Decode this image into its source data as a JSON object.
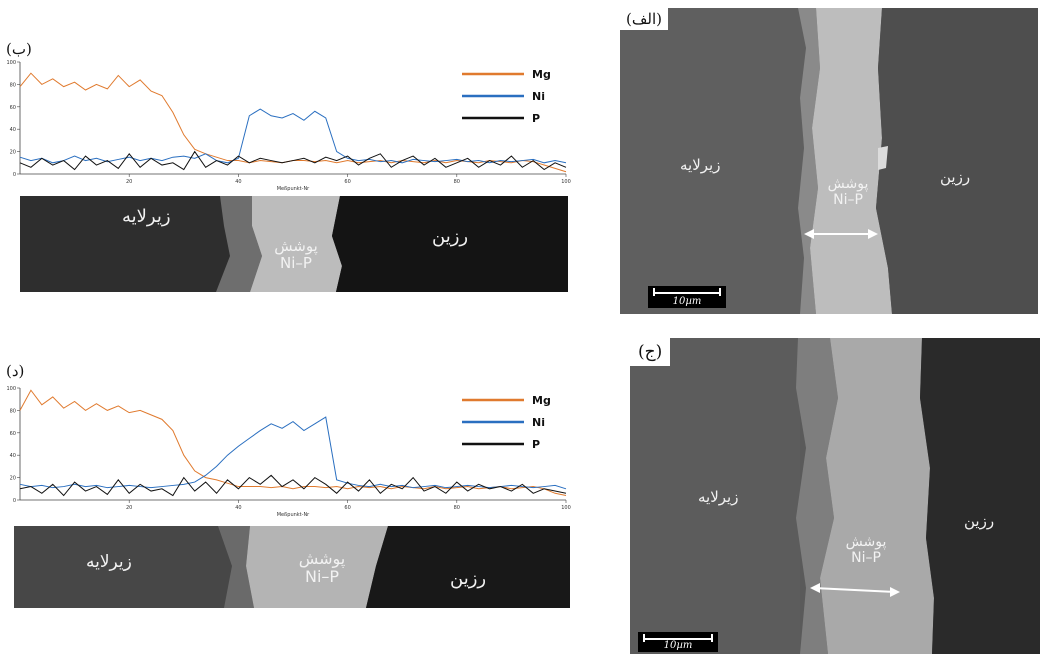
{
  "panel_a": {
    "label": "(الف)",
    "substrate": "زیرلایه",
    "coating_line1": "پوشش",
    "coating_line2": "Ni–P",
    "resin": "رزین",
    "scale": "10µm"
  },
  "panel_b": {
    "label": "(ب)",
    "substrate": "زیرلایه",
    "coating_line1": "پوشش",
    "coating_line2": "Ni–P",
    "resin": "رزین"
  },
  "panel_c": {
    "label": "(ج)",
    "substrate": "زیرلایه",
    "coating_line1": "پوشش",
    "coating_line2": "Ni–P",
    "resin": "رزین",
    "scale": "10µm"
  },
  "panel_d": {
    "label": "(د)",
    "substrate": "زیرلایه",
    "coating_line1": "پوشش",
    "coating_line2": "Ni–P",
    "resin": "رزین"
  },
  "colors": {
    "Mg": "#e07a2e",
    "Ni": "#2a6fc0",
    "P": "#111111"
  },
  "chart_data": [
    {
      "type": "line",
      "panel": "b",
      "xlabel": "Meßpunkt-Nr",
      "xlim": [
        0,
        100
      ],
      "ylim": [
        0,
        100
      ],
      "xticks": [
        20,
        40,
        60,
        80,
        100
      ],
      "yticks": [
        0,
        20,
        40,
        60,
        80,
        100
      ],
      "x": [
        0,
        2,
        4,
        6,
        8,
        10,
        12,
        14,
        16,
        18,
        20,
        22,
        24,
        26,
        28,
        30,
        32,
        34,
        36,
        38,
        40,
        42,
        44,
        46,
        48,
        50,
        52,
        54,
        56,
        58,
        60,
        62,
        64,
        66,
        68,
        70,
        72,
        74,
        76,
        78,
        80,
        82,
        84,
        86,
        88,
        90,
        92,
        94,
        96,
        98,
        100
      ],
      "series": [
        {
          "name": "Mg",
          "values": [
            78,
            90,
            80,
            85,
            78,
            82,
            75,
            80,
            76,
            88,
            78,
            84,
            74,
            70,
            55,
            35,
            22,
            18,
            15,
            12,
            12,
            10,
            12,
            11,
            10,
            12,
            12,
            11,
            12,
            10,
            12,
            10,
            11,
            12,
            10,
            12,
            11,
            10,
            12,
            10,
            12,
            11,
            10,
            12,
            11,
            10,
            12,
            11,
            8,
            5,
            2
          ]
        },
        {
          "name": "Ni",
          "values": [
            15,
            12,
            14,
            10,
            12,
            16,
            12,
            14,
            11,
            13,
            15,
            12,
            14,
            12,
            15,
            16,
            14,
            18,
            12,
            10,
            14,
            52,
            58,
            52,
            50,
            54,
            48,
            56,
            50,
            20,
            14,
            12,
            13,
            11,
            12,
            10,
            13,
            12,
            11,
            12,
            13,
            11,
            12,
            10,
            12,
            11,
            12,
            13,
            10,
            12,
            10
          ]
        },
        {
          "name": "P",
          "values": [
            10,
            6,
            14,
            8,
            12,
            4,
            16,
            8,
            12,
            5,
            18,
            6,
            14,
            8,
            10,
            4,
            20,
            6,
            12,
            8,
            16,
            10,
            14,
            12,
            10,
            12,
            14,
            10,
            15,
            12,
            16,
            8,
            14,
            18,
            6,
            12,
            16,
            8,
            14,
            6,
            10,
            14,
            6,
            12,
            8,
            16,
            6,
            12,
            4,
            10,
            6
          ]
        }
      ]
    },
    {
      "type": "line",
      "panel": "d",
      "xlabel": "Meßpunkt-Nr",
      "xlim": [
        0,
        100
      ],
      "ylim": [
        0,
        100
      ],
      "xticks": [
        20,
        40,
        60,
        80,
        100
      ],
      "yticks": [
        0,
        20,
        40,
        60,
        80,
        100
      ],
      "x": [
        0,
        2,
        4,
        6,
        8,
        10,
        12,
        14,
        16,
        18,
        20,
        22,
        24,
        26,
        28,
        30,
        32,
        34,
        36,
        38,
        40,
        42,
        44,
        46,
        48,
        50,
        52,
        54,
        56,
        58,
        60,
        62,
        64,
        66,
        68,
        70,
        72,
        74,
        76,
        78,
        80,
        82,
        84,
        86,
        88,
        90,
        92,
        94,
        96,
        98,
        100
      ],
      "series": [
        {
          "name": "Mg",
          "values": [
            80,
            98,
            85,
            92,
            82,
            88,
            80,
            86,
            80,
            84,
            78,
            80,
            76,
            72,
            62,
            40,
            26,
            20,
            18,
            15,
            12,
            12,
            12,
            11,
            12,
            10,
            12,
            12,
            11,
            12,
            10,
            12,
            11,
            12,
            10,
            12,
            11,
            10,
            12,
            10,
            11,
            12,
            10,
            11,
            12,
            10,
            11,
            12,
            10,
            6,
            4
          ]
        },
        {
          "name": "Ni",
          "values": [
            14,
            12,
            13,
            11,
            12,
            14,
            12,
            13,
            11,
            12,
            13,
            12,
            11,
            12,
            13,
            14,
            16,
            22,
            30,
            40,
            48,
            55,
            62,
            68,
            64,
            70,
            62,
            68,
            74,
            18,
            15,
            13,
            12,
            14,
            12,
            13,
            11,
            12,
            13,
            11,
            12,
            13,
            12,
            11,
            12,
            13,
            12,
            11,
            12,
            13,
            10
          ]
        },
        {
          "name": "P",
          "values": [
            10,
            12,
            6,
            14,
            4,
            16,
            8,
            12,
            5,
            18,
            6,
            14,
            8,
            10,
            4,
            20,
            8,
            16,
            6,
            18,
            10,
            20,
            14,
            22,
            12,
            18,
            10,
            20,
            14,
            6,
            16,
            8,
            18,
            6,
            14,
            10,
            20,
            8,
            12,
            6,
            16,
            8,
            14,
            10,
            12,
            8,
            14,
            6,
            10,
            8,
            6
          ]
        }
      ]
    }
  ]
}
